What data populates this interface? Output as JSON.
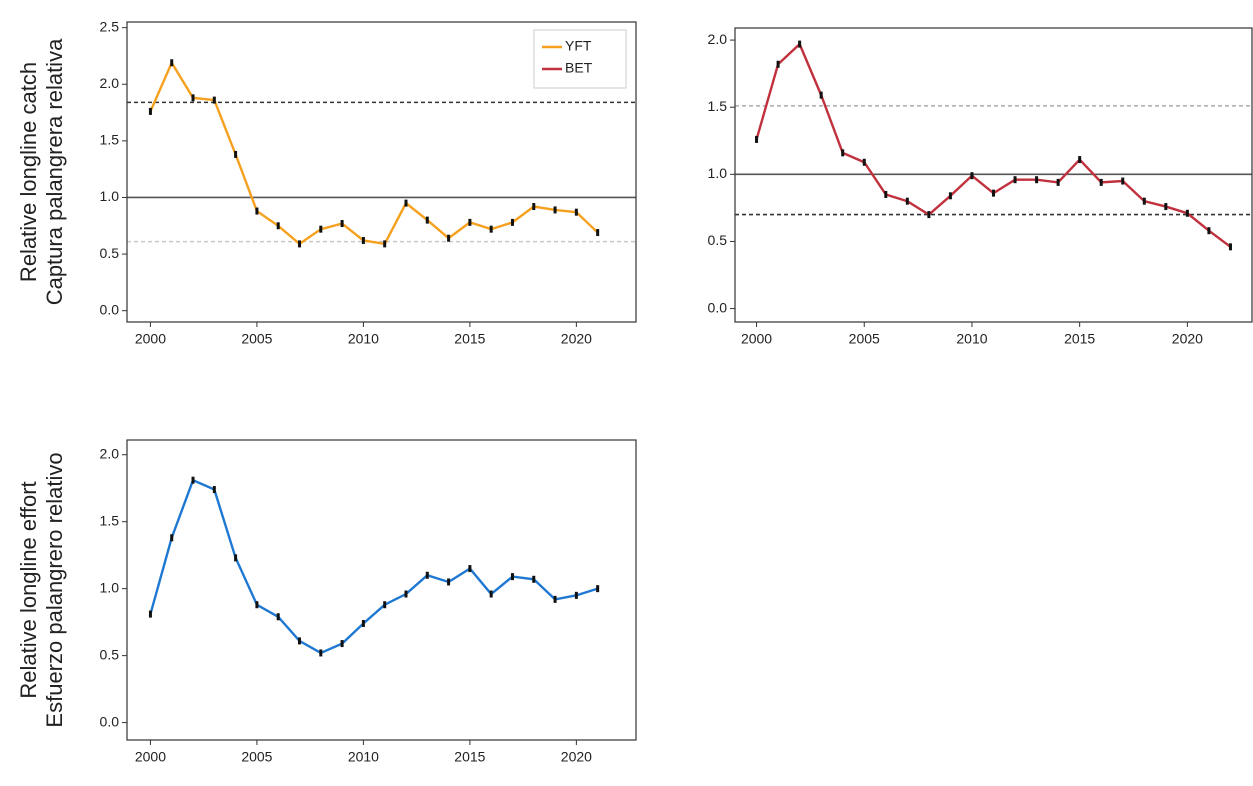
{
  "chart_data": [
    {
      "type": "line",
      "ylabel": [
        "Relative longline catch",
        "Captura palangrera relativa"
      ],
      "x": [
        2000,
        2001,
        2002,
        2003,
        2004,
        2005,
        2006,
        2007,
        2008,
        2009,
        2010,
        2011,
        2012,
        2013,
        2014,
        2015,
        2016,
        2017,
        2018,
        2019,
        2020,
        2021
      ],
      "series": [
        {
          "name": "YFT",
          "color": "#f5a01e",
          "values": [
            1.76,
            2.19,
            1.88,
            1.86,
            1.38,
            0.88,
            0.75,
            0.59,
            0.72,
            0.77,
            0.62,
            0.59,
            0.95,
            0.8,
            0.64,
            0.78,
            0.72,
            0.78,
            0.92,
            0.89,
            0.87,
            0.69
          ]
        }
      ],
      "xlim": [
        1998.9,
        2022.8
      ],
      "ylim": [
        -0.1,
        2.55
      ],
      "xticks": [
        2000,
        2005,
        2010,
        2015,
        2020
      ],
      "yticks": [
        {
          "value": 0,
          "label": "0.0"
        },
        0.5,
        {
          "value": 1,
          "label": "1.0"
        },
        1.5,
        {
          "value": 2,
          "label": "2.0"
        },
        2.5
      ],
      "hlines": [
        {
          "value": 1.84,
          "style": "dashed",
          "color": "#333333"
        },
        {
          "value": 1.0,
          "style": "solid",
          "color": "#555555"
        },
        {
          "value": 0.61,
          "style": "dashed",
          "color": "#c8c8c8"
        }
      ],
      "legend": "upper right"
    },
    {
      "type": "line",
      "x": [
        2000,
        2001,
        2002,
        2003,
        2004,
        2005,
        2006,
        2007,
        2008,
        2009,
        2010,
        2011,
        2012,
        2013,
        2014,
        2015,
        2016,
        2017,
        2018,
        2019,
        2020,
        2021,
        2022
      ],
      "series": [
        {
          "name": "BET",
          "color": "#c0313d",
          "values": [
            1.26,
            1.82,
            1.97,
            1.59,
            1.16,
            1.09,
            0.85,
            0.8,
            0.7,
            0.84,
            0.99,
            0.86,
            0.96,
            0.96,
            0.94,
            1.11,
            0.94,
            0.95,
            0.8,
            0.76,
            0.71,
            0.58,
            0.46
          ]
        }
      ],
      "xlim": [
        1999,
        2023
      ],
      "ylim": [
        -0.1,
        2.09
      ],
      "xticks": [
        2000,
        2005,
        2010,
        2015,
        2020
      ],
      "yticks": [
        {
          "value": 0,
          "label": "0.0"
        },
        0.5,
        {
          "value": 1,
          "label": "1.0"
        },
        1.5,
        {
          "value": 2,
          "label": "2.0"
        }
      ],
      "hlines": [
        {
          "value": 1.51,
          "style": "dashed",
          "color": "#aaaaaa"
        },
        {
          "value": 1.0,
          "style": "solid",
          "color": "#555555"
        },
        {
          "value": 0.7,
          "style": "dashed",
          "color": "#333333"
        }
      ]
    },
    {
      "type": "line",
      "ylabel": [
        "Relative longline effort",
        "Esfuerzo palangrero relativo"
      ],
      "x": [
        2000,
        2001,
        2002,
        2003,
        2004,
        2005,
        2006,
        2007,
        2008,
        2009,
        2010,
        2011,
        2012,
        2013,
        2014,
        2015,
        2016,
        2017,
        2018,
        2019,
        2020,
        2021
      ],
      "series": [
        {
          "color": "#1e78d2",
          "values": [
            0.81,
            1.38,
            1.81,
            1.74,
            1.23,
            0.88,
            0.79,
            0.61,
            0.52,
            0.59,
            0.74,
            0.88,
            0.96,
            1.1,
            1.05,
            1.15,
            0.96,
            1.09,
            1.07,
            0.92,
            0.95,
            1.0
          ]
        }
      ],
      "xlim": [
        1998.9,
        2022.8
      ],
      "ylim": [
        -0.13,
        2.11
      ],
      "xticks": [
        2000,
        2005,
        2010,
        2015,
        2020
      ],
      "yticks": [
        {
          "value": 0,
          "label": "0.0"
        },
        0.5,
        {
          "value": 1,
          "label": "1.0"
        },
        1.5,
        {
          "value": 2,
          "label": "2.0"
        }
      ]
    }
  ]
}
